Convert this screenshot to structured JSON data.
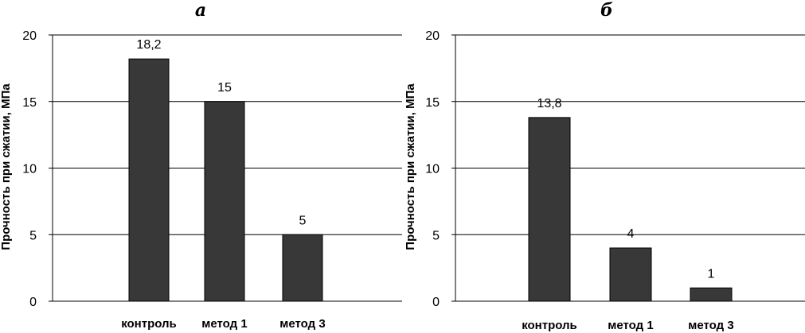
{
  "chart_data": [
    {
      "type": "bar",
      "panel_label": "а",
      "categories": [
        "контроль",
        "метод 1",
        "метод 3"
      ],
      "values": [
        18.2,
        15,
        5
      ],
      "data_labels": [
        "18,2",
        "15",
        "5"
      ],
      "ylabel": "Прочность при сжатии, МПа",
      "ylim": [
        0,
        20
      ],
      "yticks": [
        "0",
        "5",
        "10",
        "15",
        "20"
      ],
      "grid": true,
      "bar_color": "#383838"
    },
    {
      "type": "bar",
      "panel_label": "б",
      "categories": [
        "контроль",
        "метод 1",
        "метод 3"
      ],
      "values": [
        13.8,
        4,
        1
      ],
      "data_labels": [
        "13,8",
        "4",
        "1"
      ],
      "ylabel": "Прочность при сжатии, МПа",
      "ylim": [
        0,
        20
      ],
      "yticks": [
        "0",
        "5",
        "10",
        "15",
        "20"
      ],
      "grid": true,
      "bar_color": "#383838"
    }
  ]
}
